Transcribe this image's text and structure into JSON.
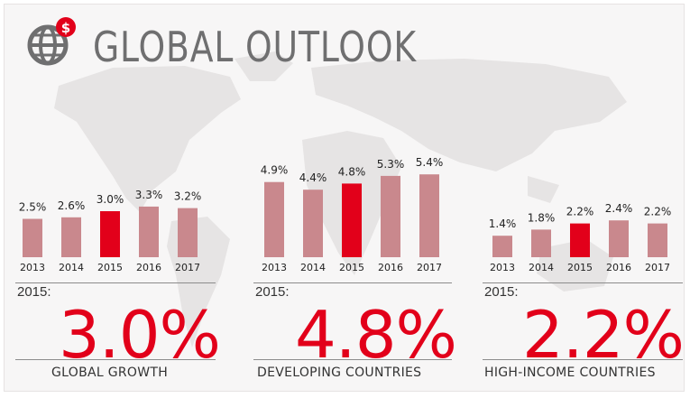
{
  "header": {
    "title": "GLOBAL OUTLOOK",
    "icon": "globe-dollar-icon"
  },
  "colors": {
    "highlight": "#e2001a",
    "bar": "#c9888d",
    "text": "#333333",
    "title": "#6f6f70"
  },
  "panels": [
    {
      "year_label": "2015:",
      "big_value": "3.0%",
      "caption": "GLOBAL GROWTH"
    },
    {
      "year_label": "2015:",
      "big_value": "4.8%",
      "caption": "DEVELOPING COUNTRIES"
    },
    {
      "year_label": "2015:",
      "big_value": "2.2%",
      "caption": "HIGH-INCOME COUNTRIES"
    }
  ],
  "chart_data": [
    {
      "type": "bar",
      "categories": [
        "2013",
        "2014",
        "2015",
        "2016",
        "2017"
      ],
      "values": [
        2.5,
        2.6,
        3.0,
        3.3,
        3.2
      ],
      "labels": [
        "2.5%",
        "2.6%",
        "3.0%",
        "3.3%",
        "3.2%"
      ],
      "highlight": "2015"
    },
    {
      "type": "bar",
      "categories": [
        "2013",
        "2014",
        "2015",
        "2016",
        "2017"
      ],
      "values": [
        4.9,
        4.4,
        4.8,
        5.3,
        5.4
      ],
      "labels": [
        "4.9%",
        "4.4%",
        "4.8%",
        "5.3%",
        "5.4%"
      ],
      "highlight": "2015"
    },
    {
      "type": "bar",
      "categories": [
        "2013",
        "2014",
        "2015",
        "2016",
        "2017"
      ],
      "values": [
        1.4,
        1.8,
        2.2,
        2.4,
        2.2
      ],
      "labels": [
        "1.4%",
        "1.8%",
        "2.2%",
        "2.4%",
        "2.2%"
      ],
      "highlight": "2015"
    }
  ]
}
